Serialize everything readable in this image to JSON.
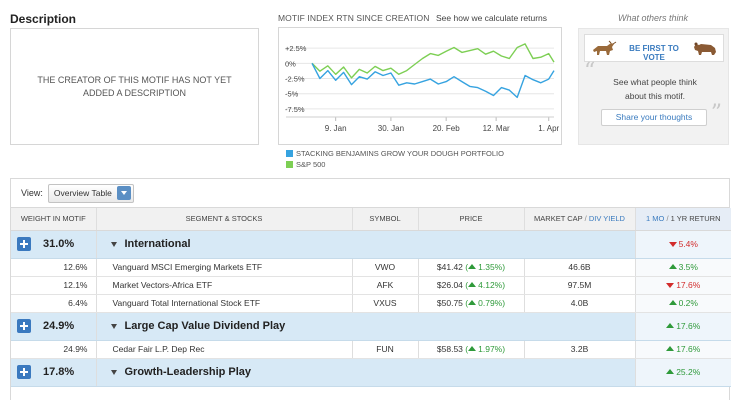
{
  "description": {
    "title": "Description",
    "text": "THE CREATOR OF THIS MOTIF HAS NOT YET ADDED A DESCRIPTION"
  },
  "chart": {
    "heading": "MOTIF INDEX RTN SINCE CREATION",
    "calc_link": "See how we calculate returns",
    "legend": [
      {
        "name": "STACKING BENJAMINS GROW YOUR DOUGH PORTFOLIO",
        "color": "#36a3e0"
      },
      {
        "name": "S&P 500",
        "color": "#7dcf54"
      }
    ]
  },
  "chart_data": {
    "type": "line",
    "title": "MOTIF INDEX RTN SINCE CREATION",
    "y_ticks": [
      "+2.5%",
      "0%",
      "-2.5%",
      "-5%",
      "-7.5%"
    ],
    "y_tick_values": [
      2.5,
      0,
      -2.5,
      -5,
      -7.5
    ],
    "x_ticks": [
      "9. Jan",
      "30. Jan",
      "20. Feb",
      "12. Mar",
      "1. Apr"
    ],
    "x_tick_days": [
      9,
      30,
      51,
      70,
      90
    ],
    "ylim": [
      -8.5,
      4
    ],
    "xlim": [
      0,
      92
    ],
    "series": [
      {
        "name": "STACKING BENJAMINS GROW YOUR DOUGH PORTFOLIO",
        "x": [
          0,
          3,
          6,
          9,
          12,
          15,
          18,
          21,
          24,
          27,
          30,
          33,
          36,
          39,
          42,
          45,
          48,
          51,
          54,
          57,
          60,
          63,
          66,
          69,
          72,
          75,
          78,
          81,
          84,
          87,
          90,
          92
        ],
        "y": [
          0,
          -2.5,
          -1.2,
          -2.8,
          -1.5,
          -3.5,
          -2.2,
          -2.6,
          -1.4,
          -2.0,
          -1.6,
          -3.6,
          -3.2,
          -3.4,
          -3.0,
          -2.6,
          -3.4,
          -3.0,
          -2.2,
          -3.0,
          -3.8,
          -4.0,
          -4.6,
          -5.3,
          -4.0,
          -4.4,
          -5.6,
          -2.0,
          -2.7,
          -3.2,
          -2.6,
          -1.2
        ]
      },
      {
        "name": "S&P 500",
        "x": [
          0,
          3,
          6,
          9,
          12,
          15,
          18,
          21,
          24,
          27,
          30,
          33,
          36,
          39,
          42,
          45,
          48,
          51,
          54,
          57,
          60,
          63,
          66,
          69,
          72,
          75,
          78,
          81,
          84,
          87,
          90,
          92
        ],
        "y": [
          0,
          -1.3,
          -0.4,
          -1.8,
          -0.6,
          -2.4,
          -1.0,
          -1.6,
          -0.5,
          -1.2,
          -0.8,
          -1.8,
          -1.2,
          -0.2,
          0.8,
          1.6,
          1.3,
          2.0,
          2.6,
          1.8,
          2.1,
          2.4,
          1.5,
          2.0,
          1.2,
          0.8,
          2.6,
          3.2,
          0.8,
          1.0,
          1.6,
          0.2
        ]
      }
    ]
  },
  "social": {
    "title": "What others think",
    "vote_label": "BE FIRST TO VOTE",
    "text_line1": "See what people think",
    "text_line2": "about this motif.",
    "share_button": "Share your thoughts"
  },
  "table": {
    "view_label": "View:",
    "view_selected": "Overview Table",
    "headers": {
      "weight": "WEIGHT IN MOTIF",
      "segment": "SEGMENT & STOCKS",
      "symbol": "SYMBOL",
      "price": "PRICE",
      "mcap": "MARKET CAP",
      "div_yield": "DIV YIELD",
      "ret_a": "1 MO",
      "ret_b": "1 YR RETURN"
    },
    "segments": [
      {
        "weight": "31.0%",
        "name": "International",
        "ret": "5.4%",
        "ret_dir": "down",
        "stocks": [
          {
            "weight": "12.6%",
            "name": "Vanguard MSCI Emerging Markets ETF",
            "symbol": "VWO",
            "price": "$41.42",
            "change": "1.35%",
            "mcap": "46.6B",
            "ret": "3.5%",
            "ret_dir": "up"
          },
          {
            "weight": "12.1%",
            "name": "Market Vectors-Africa ETF",
            "symbol": "AFK",
            "price": "$26.04",
            "change": "4.12%",
            "mcap": "97.5M",
            "ret": "17.6%",
            "ret_dir": "down"
          },
          {
            "weight": "6.4%",
            "name": "Vanguard Total International Stock ETF",
            "symbol": "VXUS",
            "price": "$50.75",
            "change": "0.79%",
            "mcap": "4.0B",
            "ret": "0.2%",
            "ret_dir": "up"
          }
        ]
      },
      {
        "weight": "24.9%",
        "name": "Large Cap Value Dividend Play",
        "ret": "17.6%",
        "ret_dir": "up",
        "stocks": [
          {
            "weight": "24.9%",
            "name": "Cedar Fair L.P. Dep Rec",
            "symbol": "FUN",
            "price": "$58.53",
            "change": "1.97%",
            "mcap": "3.2B",
            "ret": "17.6%",
            "ret_dir": "up"
          }
        ]
      },
      {
        "weight": "17.8%",
        "name": "Growth-Leadership Play",
        "ret": "25.2%",
        "ret_dir": "up",
        "stocks": []
      }
    ]
  }
}
